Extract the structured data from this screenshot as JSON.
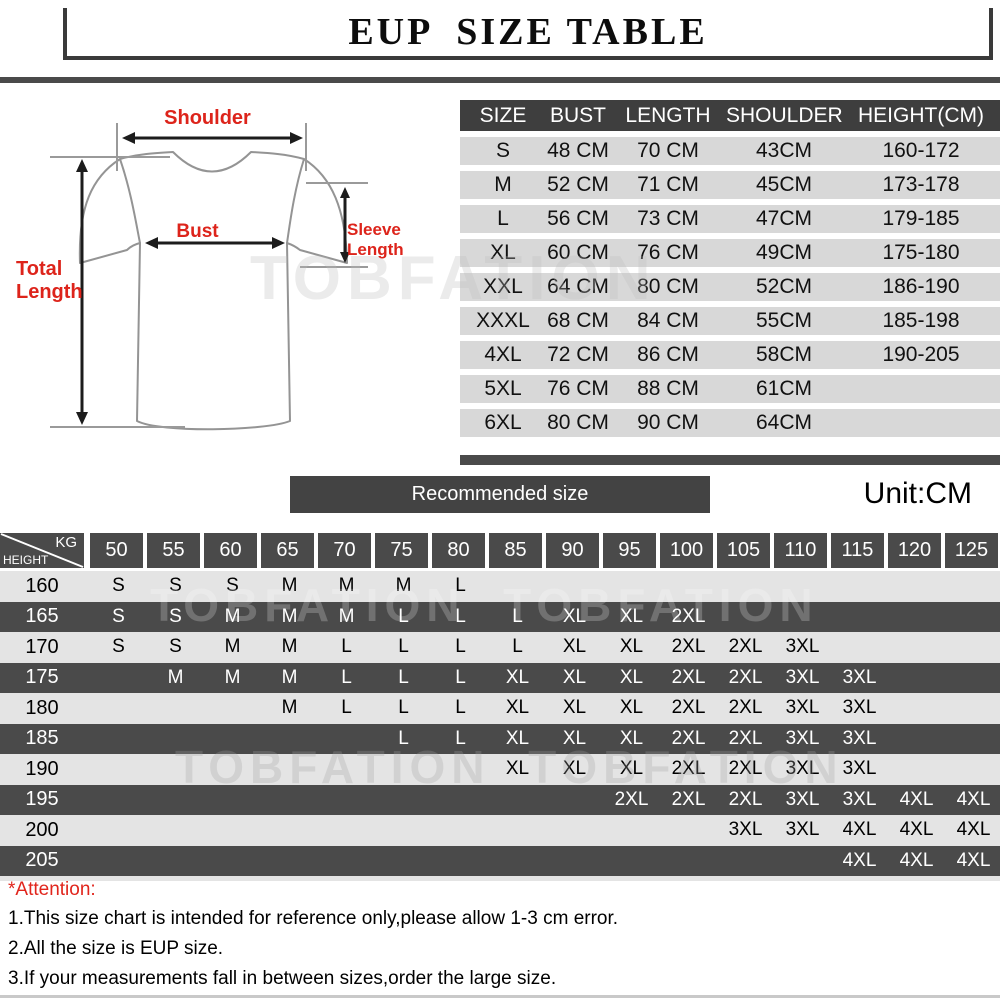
{
  "header": {
    "title": "EUP  SIZE TABLE"
  },
  "diagram": {
    "shoulder_label": "Shoulder",
    "bust_label": "Bust",
    "total_length_label": "Total Length",
    "sleeve_length_label": "Sleeve Length"
  },
  "watermarks": {
    "diagram": "TOBFATION",
    "matrix_upper": "TOBFATION  TOBFATION",
    "matrix_lower": "TOBFATION  TOBFATION"
  },
  "size_table": {
    "columns": [
      "SIZE",
      "BUST",
      "LENGTH",
      "SHOULDER",
      "HEIGHT(CM)"
    ],
    "rows": [
      [
        "S",
        "48 CM",
        "70 CM",
        "43CM",
        "160-172"
      ],
      [
        "M",
        "52 CM",
        "71 CM",
        "45CM",
        "173-178"
      ],
      [
        "L",
        "56 CM",
        "73 CM",
        "47CM",
        "179-185"
      ],
      [
        "XL",
        "60 CM",
        "76 CM",
        "49CM",
        "175-180"
      ],
      [
        "XXL",
        "64 CM",
        "80 CM",
        "52CM",
        "186-190"
      ],
      [
        "XXXL",
        "68 CM",
        "84 CM",
        "55CM",
        "185-198"
      ],
      [
        "4XL",
        "72 CM",
        "86 CM",
        "58CM",
        "190-205"
      ],
      [
        "5XL",
        "76 CM",
        "88 CM",
        "61CM",
        ""
      ],
      [
        "6XL",
        "80 CM",
        "90 CM",
        "64CM",
        ""
      ]
    ]
  },
  "recommended": {
    "label": "Recommended size",
    "unit": "Unit:CM"
  },
  "matrix": {
    "corner_top": "KG",
    "corner_left": "HEIGHT",
    "weights": [
      "50",
      "55",
      "60",
      "65",
      "70",
      "75",
      "80",
      "85",
      "90",
      "95",
      "100",
      "105",
      "110",
      "115",
      "120",
      "125"
    ],
    "rows": [
      {
        "height": "160",
        "cells": [
          "S",
          "S",
          "S",
          "M",
          "M",
          "M",
          "L",
          "",
          "",
          "",
          "",
          "",
          "",
          "",
          "",
          ""
        ]
      },
      {
        "height": "165",
        "cells": [
          "S",
          "S",
          "M",
          "M",
          "M",
          "L",
          "L",
          "L",
          "XL",
          "XL",
          "2XL",
          "",
          "",
          "",
          "",
          ""
        ]
      },
      {
        "height": "170",
        "cells": [
          "S",
          "S",
          "M",
          "M",
          "L",
          "L",
          "L",
          "L",
          "XL",
          "XL",
          "2XL",
          "2XL",
          "3XL",
          "",
          "",
          ""
        ]
      },
      {
        "height": "175",
        "cells": [
          "",
          "M",
          "M",
          "M",
          "L",
          "L",
          "L",
          "XL",
          "XL",
          "XL",
          "2XL",
          "2XL",
          "3XL",
          "3XL",
          "",
          ""
        ]
      },
      {
        "height": "180",
        "cells": [
          "",
          "",
          "",
          "M",
          "L",
          "L",
          "L",
          "XL",
          "XL",
          "XL",
          "2XL",
          "2XL",
          "3XL",
          "3XL",
          "",
          ""
        ]
      },
      {
        "height": "185",
        "cells": [
          "",
          "",
          "",
          "",
          "",
          "L",
          "L",
          "XL",
          "XL",
          "XL",
          "2XL",
          "2XL",
          "3XL",
          "3XL",
          "",
          ""
        ]
      },
      {
        "height": "190",
        "cells": [
          "",
          "",
          "",
          "",
          "",
          "",
          "",
          "XL",
          "XL",
          "XL",
          "2XL",
          "2XL",
          "3XL",
          "3XL",
          "",
          ""
        ]
      },
      {
        "height": "195",
        "cells": [
          "",
          "",
          "",
          "",
          "",
          "",
          "",
          "",
          "",
          "2XL",
          "2XL",
          "2XL",
          "3XL",
          "3XL",
          "4XL",
          "4XL"
        ]
      },
      {
        "height": "200",
        "cells": [
          "",
          "",
          "",
          "",
          "",
          "",
          "",
          "",
          "",
          "",
          "",
          "3XL",
          "3XL",
          "4XL",
          "4XL",
          "4XL"
        ]
      },
      {
        "height": "205",
        "cells": [
          "",
          "",
          "",
          "",
          "",
          "",
          "",
          "",
          "",
          "",
          "",
          "",
          "",
          "4XL",
          "4XL",
          "4XL"
        ]
      }
    ]
  },
  "attention": {
    "title": "*Attention:",
    "notes": [
      "1.This size chart is intended for reference only,please allow 1-3 cm error.",
      "2.All the size is EUP size.",
      "3.If your measurements fall in between sizes,order the large size."
    ]
  },
  "colors": {
    "dark_cell": "#4a4a4a",
    "light_row": "#e4e4e4",
    "table_row": "#d8d8d8",
    "table_header": "#3e3e3e",
    "accent_red": "#dd241b"
  }
}
